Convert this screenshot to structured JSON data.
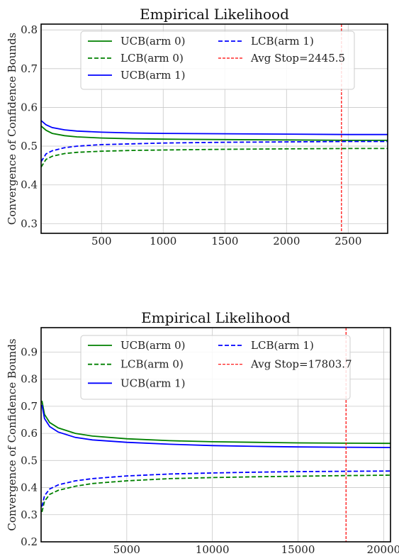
{
  "chart_data": [
    {
      "type": "line",
      "title": "Empirical Likelihood",
      "xlabel": "",
      "ylabel": "Convergence of Confidence Bounds",
      "xlim": [
        10,
        2820
      ],
      "ylim": [
        0.275,
        0.815
      ],
      "xticks": [
        500,
        1000,
        1500,
        2000,
        2500
      ],
      "xtick_labels": [
        "500",
        "1000",
        "1500",
        "2000",
        "2500"
      ],
      "yticks": [
        0.3,
        0.4,
        0.5,
        0.6,
        0.7,
        0.8
      ],
      "ytick_labels": [
        "0.3",
        "0.4",
        "0.5",
        "0.6",
        "0.7",
        "0.8"
      ],
      "grid": true,
      "legend_location": "top",
      "series": [
        {
          "name": "UCB(arm 0)",
          "color": "#008000",
          "style": "solid",
          "x": [
            10,
            50,
            100,
            200,
            300,
            500,
            750,
            1000,
            1500,
            2000,
            2500,
            2820
          ],
          "y": [
            0.552,
            0.541,
            0.533,
            0.527,
            0.524,
            0.521,
            0.519,
            0.518,
            0.517,
            0.516,
            0.515,
            0.515
          ]
        },
        {
          "name": "LCB(arm 0)",
          "color": "#008000",
          "style": "dashed",
          "x": [
            10,
            50,
            100,
            200,
            300,
            500,
            750,
            1000,
            1500,
            2000,
            2500,
            2820
          ],
          "y": [
            0.446,
            0.466,
            0.474,
            0.481,
            0.484,
            0.487,
            0.489,
            0.49,
            0.492,
            0.493,
            0.494,
            0.494
          ]
        },
        {
          "name": "UCB(arm 1)",
          "color": "#0000ff",
          "style": "solid",
          "x": [
            10,
            50,
            100,
            200,
            300,
            500,
            750,
            1000,
            1500,
            2000,
            2500,
            2820
          ],
          "y": [
            0.566,
            0.555,
            0.548,
            0.542,
            0.539,
            0.536,
            0.534,
            0.533,
            0.532,
            0.531,
            0.53,
            0.53
          ]
        },
        {
          "name": "LCB(arm 1)",
          "color": "#0000ff",
          "style": "dashed",
          "x": [
            10,
            50,
            100,
            200,
            300,
            500,
            750,
            1000,
            1500,
            2000,
            2500,
            2820
          ],
          "y": [
            0.46,
            0.48,
            0.488,
            0.496,
            0.5,
            0.504,
            0.506,
            0.508,
            0.51,
            0.511,
            0.512,
            0.512
          ]
        }
      ],
      "vline": {
        "name": "Avg Stop=2445.5",
        "x": 2445.5,
        "color": "#ff0000",
        "style": "dashed"
      }
    },
    {
      "type": "line",
      "title": "Empirical Likelihood",
      "xlabel": "",
      "ylabel": "Convergence of Confidence Bounds",
      "xlim": [
        0,
        20400
      ],
      "ylim": [
        0.2,
        0.99
      ],
      "xticks": [
        5000,
        10000,
        15000,
        20000
      ],
      "xtick_labels": [
        "5000",
        "10000",
        "15000",
        "20000"
      ],
      "yticks": [
        0.2,
        0.3,
        0.4,
        0.5,
        0.6,
        0.7,
        0.8,
        0.9
      ],
      "ytick_labels": [
        "0.2",
        "0.3",
        "0.4",
        "0.5",
        "0.6",
        "0.7",
        "0.8",
        "0.9"
      ],
      "grid": true,
      "legend_location": "top",
      "series": [
        {
          "name": "UCB(arm 0)",
          "color": "#008000",
          "style": "solid",
          "x": [
            50,
            200,
            500,
            1000,
            2000,
            3000,
            5000,
            7500,
            10000,
            12500,
            15000,
            17500,
            20400
          ],
          "y": [
            0.72,
            0.67,
            0.64,
            0.62,
            0.6,
            0.59,
            0.58,
            0.573,
            0.569,
            0.567,
            0.565,
            0.564,
            0.563
          ]
        },
        {
          "name": "LCB(arm 0)",
          "color": "#008000",
          "style": "dashed",
          "x": [
            50,
            200,
            500,
            1000,
            2000,
            3000,
            5000,
            7500,
            10000,
            12500,
            15000,
            17500,
            20400
          ],
          "y": [
            0.31,
            0.35,
            0.375,
            0.39,
            0.405,
            0.415,
            0.425,
            0.433,
            0.437,
            0.44,
            0.442,
            0.444,
            0.446
          ]
        },
        {
          "name": "UCB(arm 1)",
          "color": "#0000ff",
          "style": "solid",
          "x": [
            50,
            200,
            500,
            1000,
            2000,
            3000,
            5000,
            7500,
            10000,
            12500,
            15000,
            17500,
            20400
          ],
          "y": [
            0.705,
            0.655,
            0.625,
            0.605,
            0.585,
            0.576,
            0.567,
            0.56,
            0.555,
            0.552,
            0.55,
            0.549,
            0.548
          ]
        },
        {
          "name": "LCB(arm 1)",
          "color": "#0000ff",
          "style": "dashed",
          "x": [
            50,
            200,
            500,
            1000,
            2000,
            3000,
            5000,
            7500,
            10000,
            12500,
            15000,
            17500,
            20400
          ],
          "y": [
            0.33,
            0.37,
            0.395,
            0.41,
            0.425,
            0.433,
            0.443,
            0.45,
            0.454,
            0.457,
            0.459,
            0.46,
            0.461
          ]
        }
      ],
      "vline": {
        "name": "Avg Stop=17803.7",
        "x": 17803.7,
        "color": "#ff0000",
        "style": "dashed"
      }
    }
  ]
}
